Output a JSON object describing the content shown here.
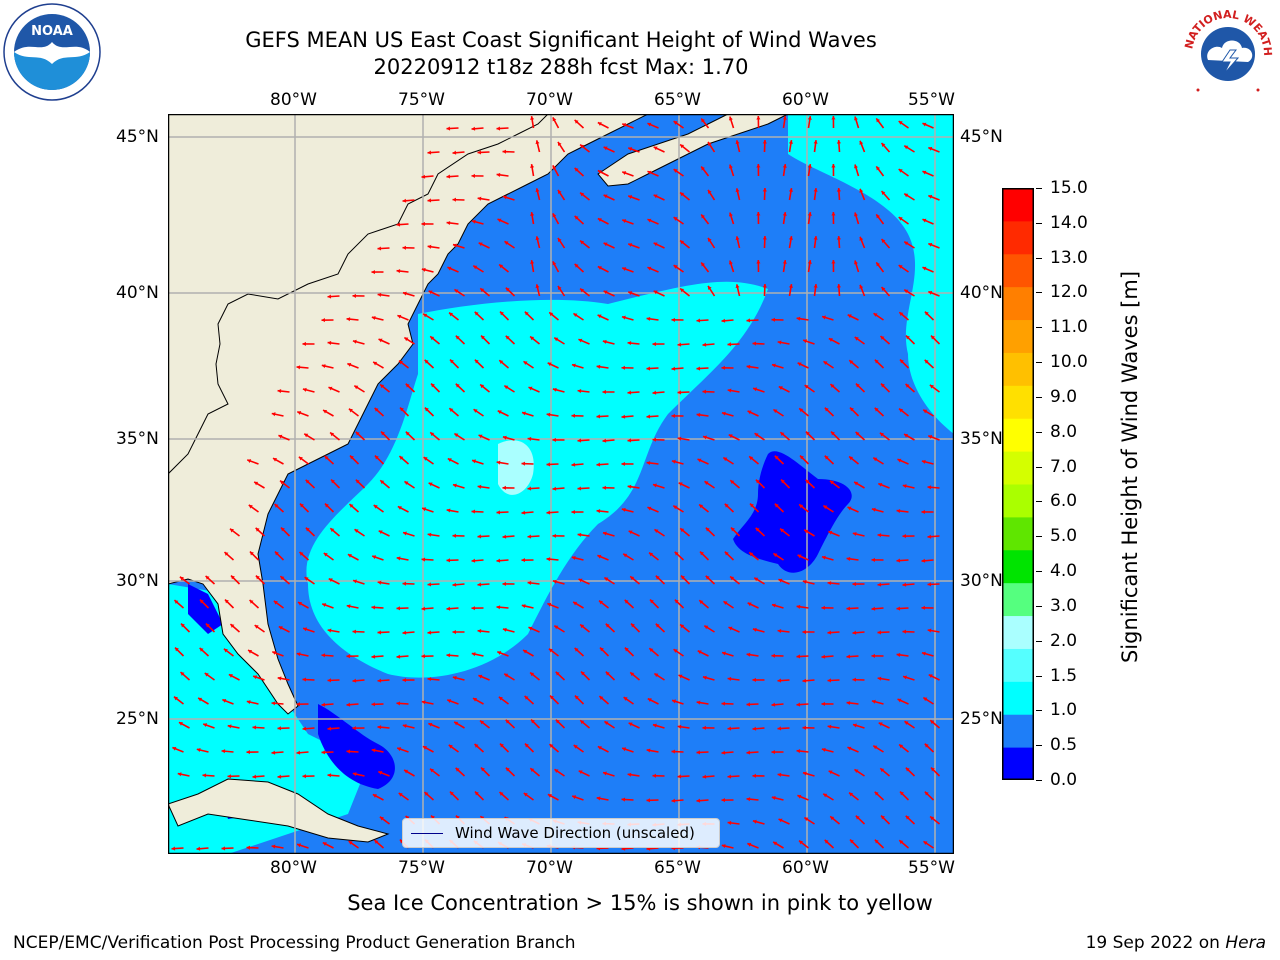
{
  "header": {
    "title_line1": "GEFS MEAN US East Coast Significant Height of Wind Waves",
    "title_line2": "20220912 t18z 288h fcst   Max: 1.70"
  },
  "logos": {
    "noaa": "NOAA",
    "nws_ring_text": "NATIONAL WEATHER SERVICE",
    "noaa_ring_text": "NATIONAL OCEANIC AND ATMOSPHERIC ADMINISTRATION · U.S. DEPARTMENT OF COMMERCE"
  },
  "map": {
    "lon_labels": [
      "80°W",
      "75°W",
      "70°W",
      "65°W",
      "60°W",
      "55°W"
    ],
    "lat_labels": [
      "45°N",
      "40°N",
      "35°N",
      "30°N",
      "25°N"
    ],
    "legend_label": "Wind Wave Direction (unscaled)",
    "colors": {
      "land": "#efedda",
      "water_0_0_5": "#0000ff",
      "water_0_5_1_0": "#1e7ef8",
      "water_1_0_1_5": "#00ffff",
      "water_1_5_2_0": "#aaffff",
      "arrow": "#ff0000",
      "grid": "#b0b0b0"
    }
  },
  "colorbar": {
    "ticks": [
      "15.0",
      "14.0",
      "13.0",
      "12.0",
      "11.0",
      "10.0",
      "9.0",
      "8.0",
      "7.0",
      "6.0",
      "5.0",
      "4.0",
      "3.0",
      "2.0",
      "1.5",
      "1.0",
      "0.5",
      "0.0"
    ],
    "colors": [
      "#0000ff",
      "#1e7ef8",
      "#00ffff",
      "#55ffff",
      "#aaffff",
      "#55ff7f",
      "#00e400",
      "#5fe600",
      "#aaff00",
      "#d4ff00",
      "#ffff00",
      "#ffe000",
      "#ffc000",
      "#ffa000",
      "#ff7f00",
      "#ff5500",
      "#ff2a00",
      "#ff0000"
    ],
    "label": "Significant Height of Wind Waves [m]"
  },
  "footer": {
    "note": "Sea Ice Concentration > 15% is shown in pink to yellow",
    "credit": "NCEP/EMC/Verification Post Processing Product Generation Branch",
    "date_prefix": "19 Sep 2022 on ",
    "date_host": "Hera"
  }
}
